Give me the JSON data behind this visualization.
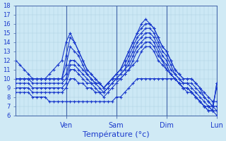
{
  "title": "Température (°c)",
  "background_color": "#d0eaf5",
  "grid_color": "#a8cce0",
  "line_color": "#1a3acc",
  "plot_bg": "#cce8f5",
  "ylim": [
    6,
    18
  ],
  "yticks": [
    6,
    7,
    8,
    9,
    10,
    11,
    12,
    13,
    14,
    15,
    16,
    17,
    18
  ],
  "day_labels": [
    "Ven",
    "Sam",
    "Dim",
    "Lun"
  ],
  "day_positions": [
    12,
    24,
    36,
    48
  ],
  "n_points": 49,
  "series": [
    [
      12,
      11.5,
      11,
      10.5,
      10,
      10,
      10,
      10,
      10.5,
      11,
      11.5,
      12,
      14,
      15,
      14,
      13,
      12,
      11,
      10.5,
      10,
      9.5,
      9,
      9.5,
      10,
      10.5,
      11,
      12,
      13,
      14,
      15,
      16,
      16.5,
      16,
      15.5,
      14.5,
      13.5,
      13,
      12,
      11,
      10.5,
      10,
      10,
      10,
      9.5,
      9,
      8,
      7.5,
      7,
      7
    ],
    [
      10,
      10,
      10,
      10,
      10,
      10,
      10,
      10,
      10,
      10,
      10,
      10,
      12.5,
      14.5,
      14,
      13,
      12,
      11,
      10.5,
      10,
      9.5,
      9,
      9.5,
      10,
      10.5,
      11,
      12,
      13,
      14,
      15,
      15.5,
      16,
      16,
      15.5,
      14.5,
      13.5,
      13,
      12,
      11,
      10.5,
      10,
      10,
      10,
      9.5,
      9,
      8.5,
      8,
      7.5,
      7.5
    ],
    [
      10,
      10,
      10,
      10,
      10,
      10,
      10,
      10,
      10,
      10,
      10,
      10,
      11.5,
      13.5,
      13,
      12.5,
      11.5,
      10.5,
      10,
      9.5,
      9.5,
      9,
      9.5,
      10,
      10.5,
      11,
      11.5,
      12.5,
      13.5,
      14.5,
      15,
      15.5,
      15.5,
      15,
      14,
      13,
      12.5,
      11.5,
      10.5,
      10,
      9.5,
      9.5,
      9.5,
      9,
      8.5,
      8,
      7.5,
      7,
      6.5
    ],
    [
      10,
      10,
      10,
      10,
      10,
      10,
      10,
      10,
      10,
      10,
      10,
      10,
      10.5,
      12,
      12,
      11.5,
      11,
      10.5,
      10,
      9.5,
      9.5,
      9,
      9.5,
      10,
      10,
      10.5,
      11,
      12,
      13,
      14,
      14.5,
      15,
      15,
      14.5,
      13.5,
      12.5,
      12,
      11,
      10.5,
      10,
      9.5,
      9.5,
      9,
      8.5,
      8,
      7.5,
      7,
      6.5,
      6
    ],
    [
      10,
      10,
      10,
      10,
      9.5,
      9.5,
      9.5,
      9.5,
      9.5,
      9.5,
      9.5,
      9.5,
      10,
      11.5,
      11.5,
      11,
      10.5,
      10,
      9.5,
      9.5,
      9,
      8.5,
      9,
      9.5,
      10,
      10.5,
      11,
      11.5,
      12.5,
      13.5,
      14,
      14.5,
      14.5,
      14,
      13,
      12,
      11.5,
      10.5,
      10,
      9.5,
      9,
      9,
      8.5,
      8,
      7.5,
      7,
      6.5,
      6.5,
      6.5
    ],
    [
      9.5,
      9.5,
      9.5,
      9.5,
      9,
      9,
      9,
      9,
      9,
      9,
      9,
      9,
      9.5,
      11,
      11,
      10.5,
      10,
      9.5,
      9.5,
      9,
      8.5,
      8.5,
      9,
      9.5,
      10,
      10,
      10.5,
      11,
      12,
      13,
      13.5,
      14,
      14,
      13.5,
      12.5,
      12,
      11,
      10.5,
      10,
      9.5,
      9,
      9,
      8.5,
      8,
      7.5,
      7,
      6.5,
      6.5,
      9.5
    ],
    [
      9,
      9,
      9,
      9,
      8.5,
      8.5,
      8.5,
      8.5,
      8.5,
      8.5,
      8.5,
      8.5,
      9,
      10,
      10,
      9.5,
      9.5,
      9,
      9,
      8.5,
      8.5,
      8,
      8.5,
      9,
      9.5,
      10,
      10.5,
      11,
      11.5,
      12,
      13,
      13.5,
      13.5,
      13,
      12,
      11.5,
      11,
      10.5,
      10,
      9.5,
      9,
      8.5,
      8.5,
      8,
      7.5,
      7,
      7,
      7,
      9
    ],
    [
      8.5,
      8.5,
      8.5,
      8.5,
      8,
      8,
      8,
      8,
      7.5,
      7.5,
      7.5,
      7.5,
      7.5,
      7.5,
      7.5,
      7.5,
      7.5,
      7.5,
      7.5,
      7.5,
      7.5,
      7.5,
      7.5,
      7.5,
      8,
      8,
      8.5,
      9,
      9.5,
      10,
      10,
      10,
      10,
      10,
      10,
      10,
      10,
      10,
      10,
      9.5,
      9,
      9,
      8.5,
      8,
      7.5,
      7,
      7,
      6.5,
      9.5
    ]
  ]
}
